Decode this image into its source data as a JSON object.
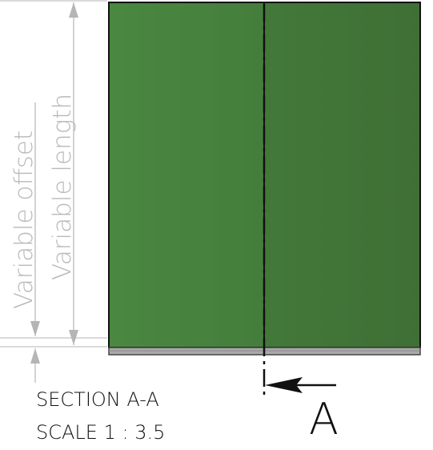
{
  "dimensions": {
    "offset_label": "Variable offset",
    "length_label": "Variable length"
  },
  "section": {
    "title": "SECTION A-A",
    "scale": "SCALE 1 : 3.5",
    "marker_letter": "A"
  },
  "colors": {
    "panel_left": "#4a8740",
    "panel_right": "#3f6f35",
    "base_plate": "#a9a9a9",
    "dimension_line": "#b5b5b5",
    "outline": "#111111"
  }
}
